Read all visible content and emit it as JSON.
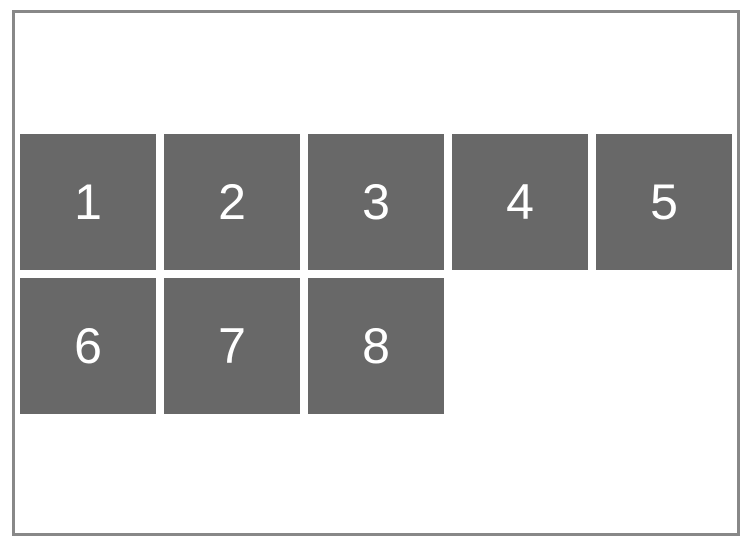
{
  "tiles": [
    "1",
    "2",
    "3",
    "4",
    "5",
    "6",
    "7",
    "8"
  ],
  "colors": {
    "tile_background": "#686868",
    "tile_text": "#ffffff",
    "frame_border": "#888888",
    "background": "#ffffff"
  }
}
